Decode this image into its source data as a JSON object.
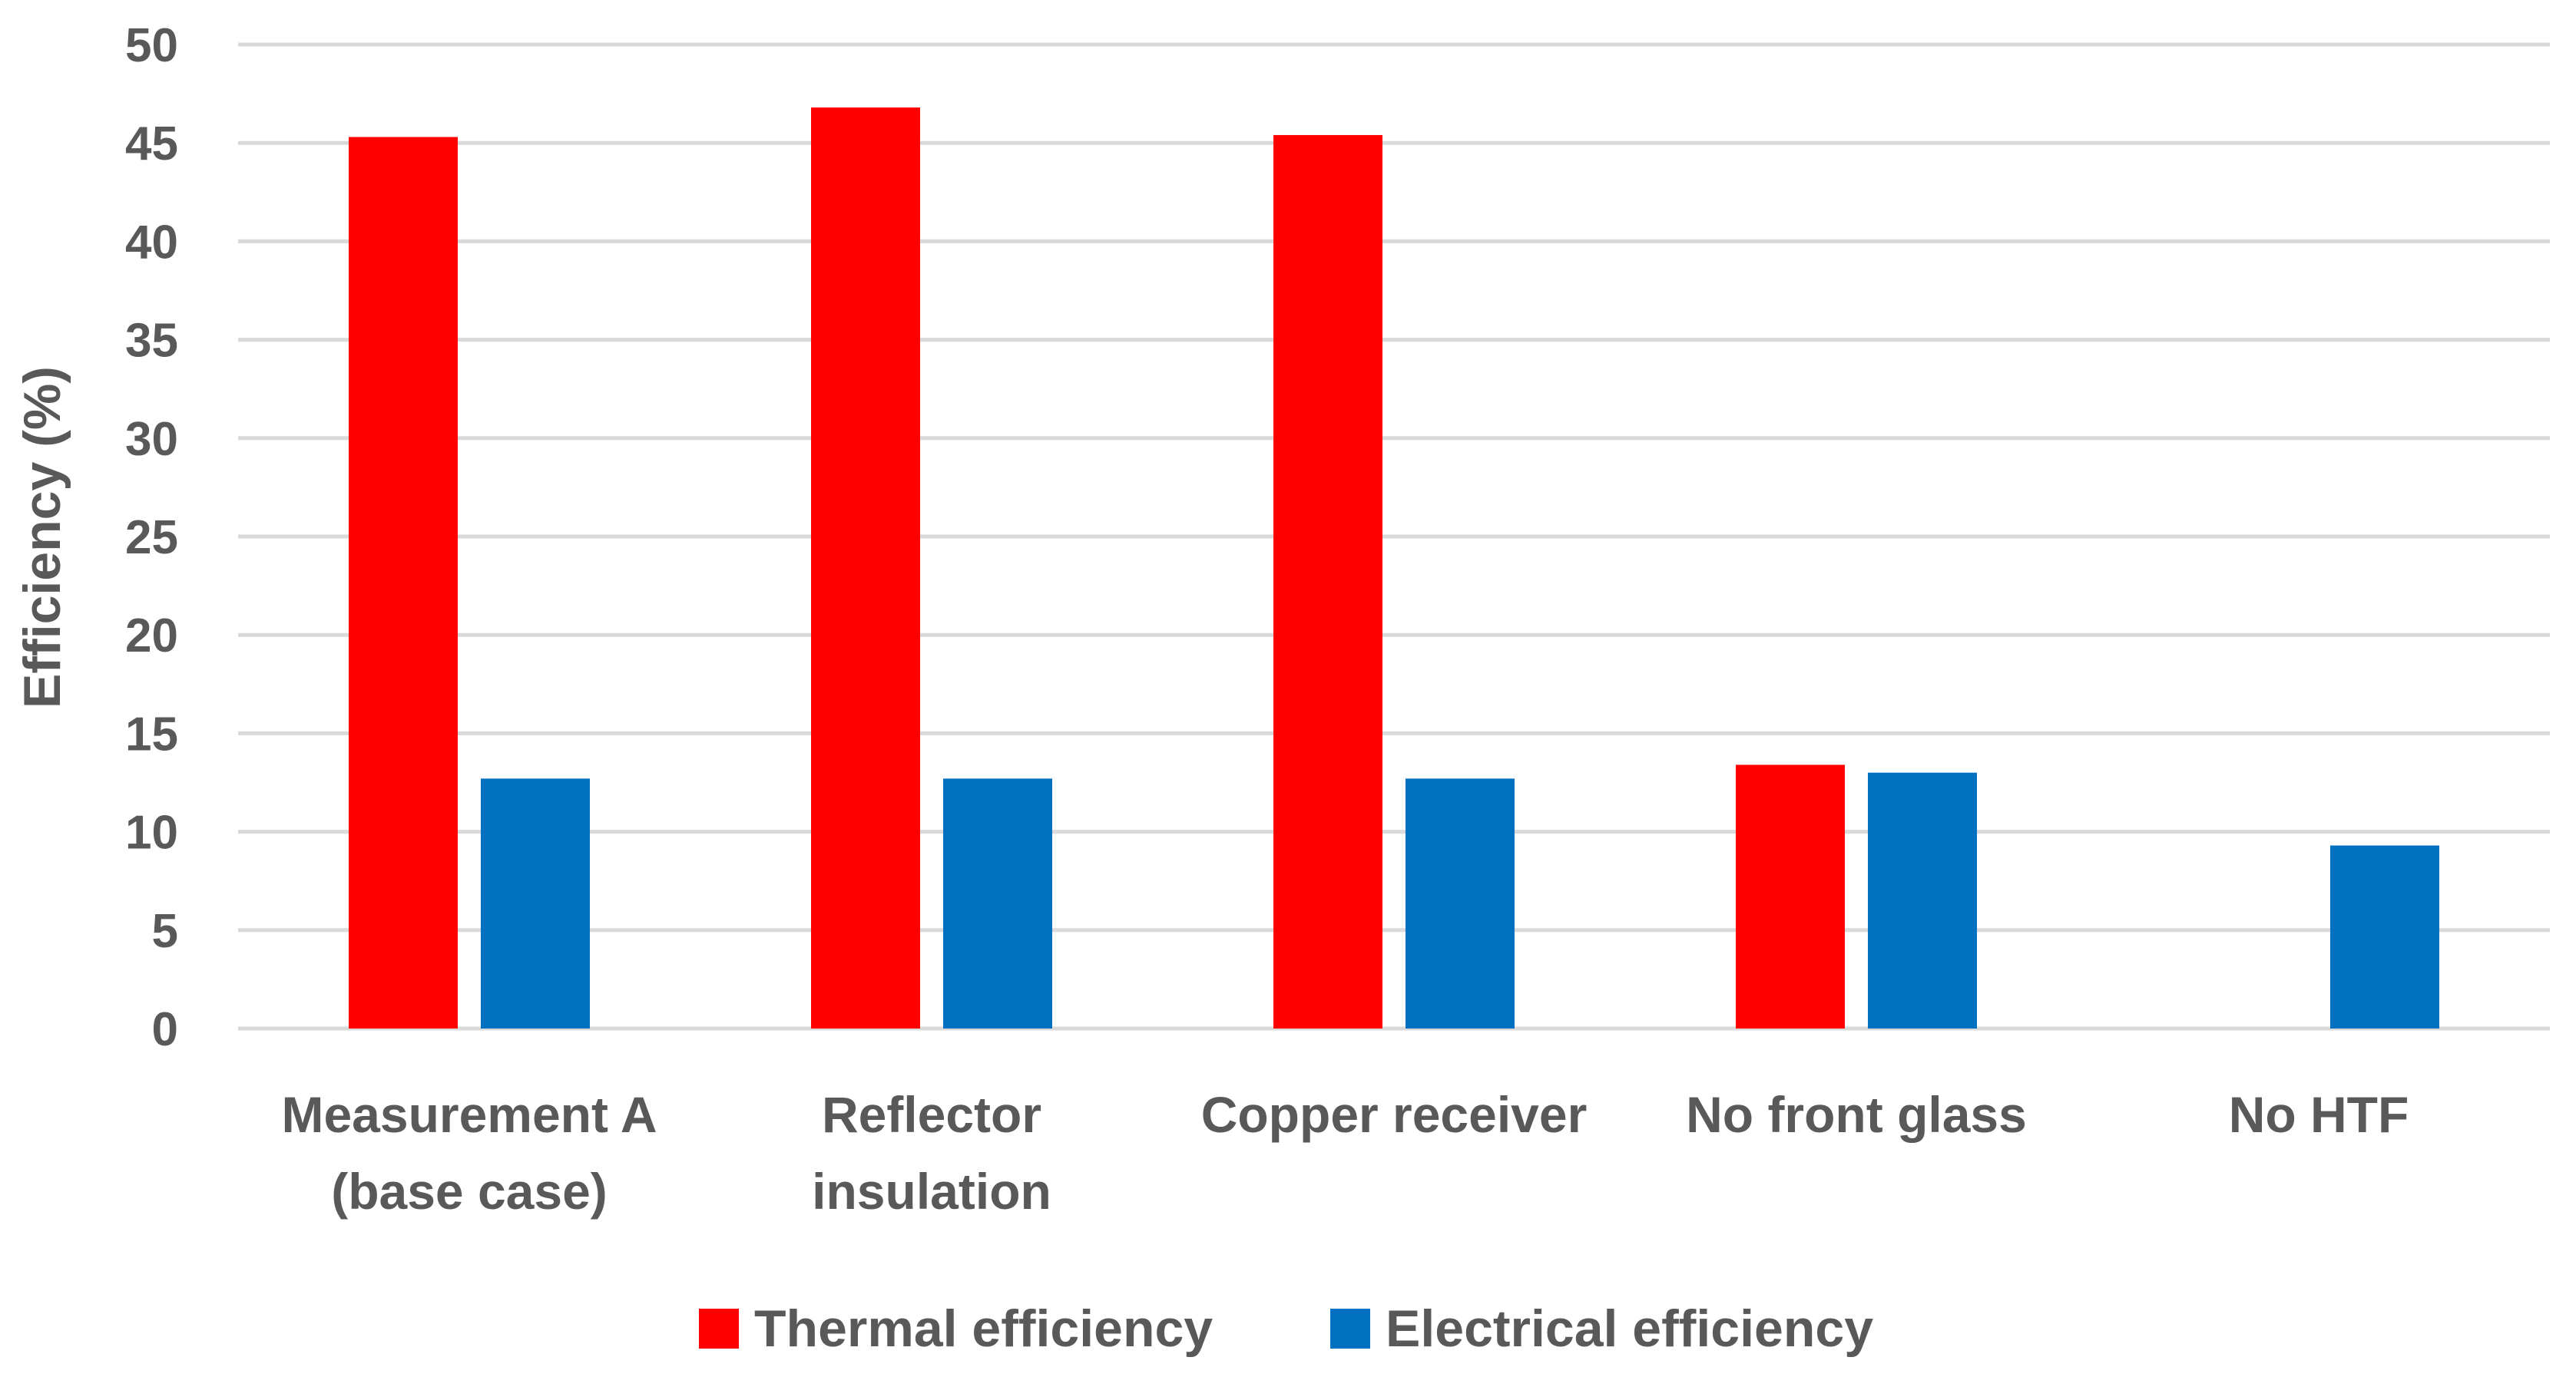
{
  "chart_data": {
    "type": "bar",
    "title": "",
    "xlabel": "",
    "ylabel": "Efficiency (%)",
    "ylim": [
      0,
      50
    ],
    "yticks": [
      0,
      5,
      10,
      15,
      20,
      25,
      30,
      35,
      40,
      45,
      50
    ],
    "grid": true,
    "legend_position": "bottom",
    "categories": [
      [
        "Measurement A",
        "(base case)"
      ],
      [
        "Reflector",
        "insulation"
      ],
      [
        "Copper receiver"
      ],
      [
        "No front glass"
      ],
      [
        "No HTF"
      ]
    ],
    "series": [
      {
        "name": "Thermal efficiency",
        "color": "#ff0000",
        "values": [
          45.3,
          46.8,
          45.4,
          13.4,
          0
        ]
      },
      {
        "name": "Electrical efficiency",
        "color": "#0070c0",
        "values": [
          12.7,
          12.7,
          12.7,
          13.0,
          9.3
        ]
      }
    ]
  }
}
